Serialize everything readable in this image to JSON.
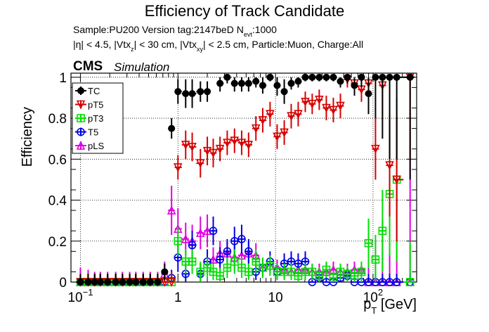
{
  "chart_data": {
    "type": "scatter",
    "title": "Efficiency of Track Candidate",
    "info": {
      "sample": "Sample:PU200   Version tag:2147beD  N",
      "nevt_sub": "evt",
      "nevt_val": ":1000",
      "cuts": {
        "p1": "|η| < 4.5, |Vtx",
        "s1": "z",
        "p2": "| < 30 cm, |Vtx",
        "s2": "xy",
        "p3": "| < 2.5 cm, Particle:Muon, Charge:All"
      }
    },
    "cms_label": "CMS",
    "simulation_label": "Simulation",
    "ylabel": "Efficiency",
    "xlabel": {
      "main": "p",
      "sub": "T",
      "unit": " [GeV]"
    },
    "xscale": "log",
    "xlim": [
      0.08,
      280
    ],
    "ylim": [
      0,
      1.02
    ],
    "grid": true,
    "legend_position": "top-left",
    "x_ticks": [
      {
        "value": 0.1,
        "base": "10",
        "exp": "−1"
      },
      {
        "value": 1,
        "base": "1",
        "exp": ""
      },
      {
        "value": 10,
        "base": "10",
        "exp": ""
      },
      {
        "value": 100,
        "base": "10",
        "exp": "2"
      }
    ],
    "y_ticks": [
      {
        "value": 0,
        "label": "0"
      },
      {
        "value": 0.2,
        "label": "0.2"
      },
      {
        "value": 0.4,
        "label": "0.4"
      },
      {
        "value": 0.6,
        "label": "0.6"
      },
      {
        "value": 0.8,
        "label": "0.8"
      },
      {
        "value": 1.0,
        "label": "1"
      }
    ],
    "bins_x": [
      0.1,
      0.12,
      0.14,
      0.16,
      0.19,
      0.23,
      0.27,
      0.32,
      0.37,
      0.44,
      0.52,
      0.62,
      0.73,
      0.86,
      1.0,
      1.2,
      1.4,
      1.7,
      2.0,
      2.3,
      2.7,
      3.2,
      3.8,
      4.5,
      5.3,
      6.3,
      7.4,
      8.8,
      10.4,
      12.3,
      14.5,
      17.1,
      20.2,
      23.8,
      28.1,
      33.2,
      39.2,
      46.3,
      54.6,
      64.5,
      76.1,
      89.9,
      106,
      125,
      148,
      175,
      240
    ],
    "series": [
      {
        "name": "TC",
        "color": "#000000",
        "marker": "circle-filled",
        "values": [
          0,
          0,
          0,
          0,
          0,
          0,
          0,
          0,
          0,
          0,
          0,
          0,
          0.05,
          0.75,
          0.93,
          0.92,
          0.92,
          0.93,
          0.93,
          null,
          0.97,
          1.0,
          0.97,
          0.97,
          0.97,
          0.98,
          0.96,
          1.0,
          0.96,
          0.93,
          0.97,
          0.98,
          1.0,
          1.0,
          1.0,
          1.0,
          1.0,
          0.98,
          1.0,
          0.96,
          1.0,
          0.92,
          1.0,
          1.0,
          1.0,
          1.0,
          1.0
        ],
        "errors": [
          0.04,
          0.04,
          0.04,
          0.04,
          0.04,
          0.04,
          0.04,
          0.04,
          0.04,
          0.04,
          0.04,
          0.04,
          0.04,
          0.05,
          0.06,
          0.07,
          0.07,
          0.05,
          0.05,
          null,
          0.04,
          0.03,
          0.04,
          0.04,
          0.04,
          0.03,
          0.04,
          0.02,
          0.05,
          0.06,
          0.03,
          0.03,
          0.02,
          0.02,
          0.02,
          0.02,
          0.02,
          0.03,
          0.03,
          0.05,
          0.05,
          0.1,
          0.2,
          0.3,
          0.4,
          0.4,
          0.5
        ]
      },
      {
        "name": "pT5",
        "color": "#d60000",
        "marker": "triangle-down-open",
        "values": [
          0,
          0,
          0,
          0,
          0,
          0,
          0,
          0,
          0,
          0,
          0,
          0,
          0,
          0,
          0.56,
          0.67,
          0.66,
          0.58,
          0.64,
          0.63,
          0.65,
          0.68,
          0.69,
          0.68,
          0.67,
          0.75,
          0.79,
          0.82,
          0.71,
          0.73,
          0.81,
          0.82,
          0.88,
          0.87,
          0.89,
          0.85,
          0.84,
          0.86,
          0.99,
          0.97,
          0.94,
          0.97,
          0.65,
          0.96,
          0.57,
          0.5,
          1.0
        ],
        "errors": [
          0.04,
          0.04,
          0.04,
          0.04,
          0.04,
          0.04,
          0.04,
          0.04,
          0.04,
          0.04,
          0.04,
          0.04,
          0.05,
          0.05,
          0.06,
          0.07,
          0.07,
          0.07,
          0.07,
          0.07,
          0.06,
          0.06,
          0.06,
          0.06,
          0.06,
          0.06,
          0.06,
          0.06,
          0.06,
          0.06,
          0.06,
          0.06,
          0.05,
          0.05,
          0.05,
          0.06,
          0.06,
          0.06,
          0.04,
          0.05,
          0.06,
          0.06,
          0.15,
          0.15,
          0.25,
          0.3,
          0.4
        ]
      },
      {
        "name": "pT3",
        "color": "#00e000",
        "marker": "square-open",
        "values": [
          0,
          0,
          0,
          0,
          0,
          0,
          0,
          0,
          0,
          0,
          0,
          0,
          0,
          0,
          0.2,
          0.1,
          0.1,
          0.05,
          0.07,
          0.05,
          0.03,
          0.07,
          0.1,
          0.07,
          0.05,
          0.1,
          0.07,
          0.08,
          0.05,
          0.05,
          0.05,
          0.03,
          0.05,
          0.05,
          0.03,
          0.06,
          0.02,
          0.05,
          0.04,
          0.03,
          0.05,
          0.19,
          0.11,
          0.25,
          0.43,
          0.5,
          0
        ],
        "errors": [
          0.04,
          0.04,
          0.04,
          0.04,
          0.04,
          0.04,
          0.04,
          0.04,
          0.04,
          0.04,
          0.04,
          0.04,
          0.04,
          0.04,
          0.07,
          0.06,
          0.06,
          0.05,
          0.05,
          0.04,
          0.04,
          0.05,
          0.06,
          0.05,
          0.04,
          0.06,
          0.05,
          0.05,
          0.04,
          0.04,
          0.04,
          0.04,
          0.04,
          0.04,
          0.04,
          0.04,
          0.03,
          0.04,
          0.04,
          0.04,
          0.05,
          0.12,
          0.12,
          0.2,
          0.3,
          0.4,
          0.2
        ]
      },
      {
        "name": "T5",
        "color": "#0000e0",
        "marker": "circle-open",
        "values": [
          0,
          0,
          0,
          0,
          0,
          0,
          0,
          0,
          0,
          0,
          0,
          0,
          0,
          0.02,
          0.12,
          0.04,
          0.18,
          0.04,
          0.1,
          0.25,
          0.11,
          0.15,
          0.2,
          0.21,
          0.15,
          0.05,
          0.07,
          0.1,
          0.05,
          0.09,
          0.1,
          0.09,
          0.1,
          0.0,
          0.02,
          0.0,
          0.0,
          0.02,
          0.03,
          0.0,
          0.0,
          0.0,
          0.0,
          0.0,
          0.0,
          0.0,
          0.0
        ],
        "errors": [
          0.04,
          0.04,
          0.04,
          0.04,
          0.04,
          0.04,
          0.04,
          0.04,
          0.04,
          0.04,
          0.04,
          0.04,
          0.04,
          0.04,
          0.07,
          0.05,
          0.07,
          0.05,
          0.06,
          0.07,
          0.06,
          0.06,
          0.07,
          0.07,
          0.06,
          0.04,
          0.04,
          0.05,
          0.04,
          0.05,
          0.05,
          0.05,
          0.05,
          0.04,
          0.04,
          0.04,
          0.04,
          0.04,
          0.04,
          0.04,
          0.04,
          0.04,
          0.04,
          0.04,
          0.04,
          0.04,
          0.04
        ]
      },
      {
        "name": "pLS",
        "color": "#e000e0",
        "marker": "triangle-up-open",
        "values": [
          0,
          0,
          0,
          0,
          0,
          0,
          0,
          0,
          0,
          0,
          0,
          0,
          0.04,
          0.35,
          0.26,
          0.21,
          0.2,
          0.24,
          0.25,
          0.11,
          0.14,
          0.14,
          0.12,
          0.13,
          0.14,
          0.13,
          0.07,
          0.08,
          0.07,
          0.06,
          0.05,
          0.06,
          0.06,
          0.05,
          0.05,
          0.05,
          0.06,
          0.05,
          0.05,
          0.06,
          0.06,
          0.0,
          0.0,
          0.0,
          0.0,
          0.0,
          0.0
        ],
        "errors": [
          0.07,
          0.06,
          0.05,
          0.05,
          0.05,
          0.05,
          0.05,
          0.05,
          0.05,
          0.05,
          0.05,
          0.05,
          0.06,
          0.12,
          0.1,
          0.08,
          0.08,
          0.08,
          0.08,
          0.06,
          0.06,
          0.06,
          0.06,
          0.06,
          0.06,
          0.06,
          0.04,
          0.04,
          0.04,
          0.04,
          0.04,
          0.04,
          0.04,
          0.04,
          0.04,
          0.04,
          0.04,
          0.04,
          0.04,
          0.04,
          0.04,
          0.1,
          0.2,
          0.3,
          0.4,
          0.5,
          0.6
        ]
      }
    ]
  }
}
